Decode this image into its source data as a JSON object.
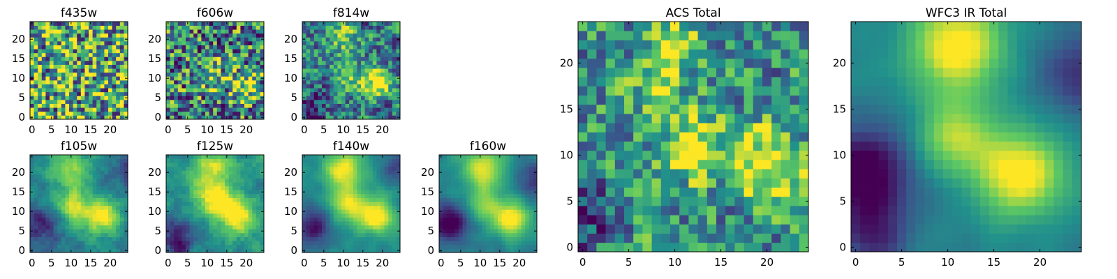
{
  "figure": {
    "colormap": "viridis",
    "colormap_stops": [
      "#440154",
      "#3b528b",
      "#21918c",
      "#5ec962",
      "#fde725"
    ]
  },
  "chart_data": [
    {
      "type": "heatmap",
      "title": "f435w",
      "grid_size": [
        25,
        25
      ],
      "xticks": [
        "0",
        "5",
        "10",
        "15",
        "20"
      ],
      "yticks": [
        "0",
        "5",
        "10",
        "15",
        "20"
      ],
      "xlim": [
        -0.5,
        24.5
      ],
      "ylim": [
        -0.5,
        24.5
      ],
      "grid": false,
      "texture": "noisy, nearly uniform high values",
      "hotspots": [],
      "coldspots": []
    },
    {
      "type": "heatmap",
      "title": "f606w",
      "grid_size": [
        25,
        25
      ],
      "xticks": [
        "0",
        "5",
        "10",
        "15",
        "20"
      ],
      "yticks": [
        "0",
        "5",
        "10",
        "15",
        "20"
      ],
      "xlim": [
        -0.5,
        24.5
      ],
      "ylim": [
        -0.5,
        24.5
      ],
      "grid": false,
      "texture": "noisy with faint bright peaks",
      "hotspots": [
        {
          "x": 20,
          "y": 8,
          "sigma": 2.5,
          "amp": 0.5
        },
        {
          "x": 11,
          "y": 11,
          "sigma": 2.5,
          "amp": 0.35
        }
      ],
      "coldspots": []
    },
    {
      "type": "heatmap",
      "title": "f814w",
      "grid_size": [
        25,
        25
      ],
      "xticks": [
        "0",
        "5",
        "10",
        "15",
        "20"
      ],
      "yticks": [
        "0",
        "5",
        "10",
        "15",
        "20"
      ],
      "xlim": [
        -0.5,
        24.5
      ],
      "ylim": [
        -0.5,
        24.5
      ],
      "grid": false,
      "texture": "noisy with bright peaks",
      "hotspots": [
        {
          "x": 19,
          "y": 9,
          "sigma": 2.6,
          "amp": 0.6
        },
        {
          "x": 11,
          "y": 11,
          "sigma": 2.6,
          "amp": 0.45
        },
        {
          "x": 10,
          "y": 20,
          "sigma": 3,
          "amp": 0.35
        }
      ],
      "coldspots": [
        {
          "x": 2,
          "y": 3,
          "sigma": 3,
          "amp": 0.25
        }
      ]
    },
    {
      "type": "heatmap",
      "title": "f105w",
      "grid_size": [
        25,
        25
      ],
      "xticks": [
        "0",
        "5",
        "10",
        "15",
        "20"
      ],
      "yticks": [
        "0",
        "5",
        "10",
        "15",
        "20"
      ],
      "xlim": [
        -0.5,
        24.5
      ],
      "ylim": [
        -0.5,
        24.5
      ],
      "grid": false,
      "texture": "moderately smooth",
      "hotspots": [
        {
          "x": 18,
          "y": 9,
          "sigma": 3,
          "amp": 0.55
        },
        {
          "x": 11,
          "y": 11,
          "sigma": 3,
          "amp": 0.5
        },
        {
          "x": 10,
          "y": 21,
          "sigma": 3.5,
          "amp": 0.4
        }
      ],
      "coldspots": [
        {
          "x": 2,
          "y": 6,
          "sigma": 3.5,
          "amp": 0.35
        },
        {
          "x": 24,
          "y": 20,
          "sigma": 3,
          "amp": 0.25
        }
      ]
    },
    {
      "type": "heatmap",
      "title": "f125w",
      "grid_size": [
        25,
        25
      ],
      "xticks": [
        "0",
        "5",
        "10",
        "15",
        "20"
      ],
      "yticks": [
        "0",
        "5",
        "10",
        "15",
        "20"
      ],
      "xlim": [
        -0.5,
        24.5
      ],
      "ylim": [
        -0.5,
        24.5
      ],
      "grid": false,
      "texture": "moderately smooth",
      "hotspots": [
        {
          "x": 18,
          "y": 9,
          "sigma": 3,
          "amp": 0.55
        },
        {
          "x": 12,
          "y": 13,
          "sigma": 3.5,
          "amp": 0.5
        },
        {
          "x": 11,
          "y": 21,
          "sigma": 3.5,
          "amp": 0.45
        }
      ],
      "coldspots": [
        {
          "x": 2,
          "y": 4,
          "sigma": 3.5,
          "amp": 0.35
        },
        {
          "x": 3,
          "y": 0,
          "sigma": 2,
          "amp": 0.3
        }
      ]
    },
    {
      "type": "heatmap",
      "title": "f140w",
      "grid_size": [
        25,
        25
      ],
      "xticks": [
        "0",
        "5",
        "10",
        "15",
        "20"
      ],
      "yticks": [
        "0",
        "5",
        "10",
        "15",
        "20"
      ],
      "xlim": [
        -0.5,
        24.5
      ],
      "ylim": [
        -0.5,
        24.5
      ],
      "grid": false,
      "texture": "smooth",
      "hotspots": [
        {
          "x": 18,
          "y": 9,
          "sigma": 3.2,
          "amp": 0.6
        },
        {
          "x": 10,
          "y": 21,
          "sigma": 3.5,
          "amp": 0.55
        },
        {
          "x": 11,
          "y": 12,
          "sigma": 3,
          "amp": 0.45
        }
      ],
      "coldspots": [
        {
          "x": 2,
          "y": 6,
          "sigma": 3.5,
          "amp": 0.45
        },
        {
          "x": 24,
          "y": 22,
          "sigma": 3,
          "amp": 0.3
        }
      ]
    },
    {
      "type": "heatmap",
      "title": "f160w",
      "grid_size": [
        25,
        25
      ],
      "xticks": [
        "0",
        "5",
        "10",
        "15",
        "20"
      ],
      "yticks": [
        "0",
        "5",
        "10",
        "15",
        "20"
      ],
      "xlim": [
        -0.5,
        24.5
      ],
      "ylim": [
        -0.5,
        24.5
      ],
      "grid": false,
      "texture": "smooth",
      "hotspots": [
        {
          "x": 18,
          "y": 8,
          "sigma": 3.2,
          "amp": 0.6
        },
        {
          "x": 11,
          "y": 21,
          "sigma": 3.5,
          "amp": 0.55
        },
        {
          "x": 11,
          "y": 12,
          "sigma": 3,
          "amp": 0.4
        }
      ],
      "coldspots": [
        {
          "x": 2,
          "y": 7,
          "sigma": 3.5,
          "amp": 0.5
        },
        {
          "x": 24,
          "y": 18,
          "sigma": 3,
          "amp": 0.3
        }
      ]
    },
    {
      "type": "heatmap",
      "title": "ACS Total",
      "grid_size": [
        25,
        25
      ],
      "xticks": [
        "0",
        "5",
        "10",
        "15",
        "20"
      ],
      "yticks": [
        "0",
        "5",
        "10",
        "15",
        "20"
      ],
      "xlim": [
        -0.5,
        24.5
      ],
      "ylim": [
        -0.5,
        24.5
      ],
      "grid": false,
      "texture": "noisy with bright peaks",
      "hotspots": [
        {
          "x": 20,
          "y": 9,
          "sigma": 2.8,
          "amp": 0.6
        },
        {
          "x": 12,
          "y": 11,
          "sigma": 2.6,
          "amp": 0.5
        },
        {
          "x": 10,
          "y": 22,
          "sigma": 2.2,
          "amp": 0.45
        },
        {
          "x": 8,
          "y": 17,
          "sigma": 1.8,
          "amp": 0.3
        }
      ],
      "coldspots": [
        {
          "x": 1,
          "y": 3,
          "sigma": 2.5,
          "amp": 0.25
        }
      ]
    },
    {
      "type": "heatmap",
      "title": "WFC3 IR Total",
      "grid_size": [
        25,
        25
      ],
      "xticks": [
        "0",
        "5",
        "10",
        "15",
        "20"
      ],
      "yticks": [
        "0",
        "5",
        "10",
        "15",
        "20"
      ],
      "xlim": [
        -0.5,
        24.5
      ],
      "ylim": [
        -0.5,
        24.5
      ],
      "grid": false,
      "texture": "smooth",
      "hotspots": [
        {
          "x": 18,
          "y": 8,
          "sigma": 3.2,
          "amp": 0.6
        },
        {
          "x": 11,
          "y": 22,
          "sigma": 3.6,
          "amp": 0.6
        },
        {
          "x": 11,
          "y": 12,
          "sigma": 2.8,
          "amp": 0.45
        }
      ],
      "coldspots": [
        {
          "x": 1,
          "y": 8,
          "sigma": 3.5,
          "amp": 0.55
        },
        {
          "x": 24,
          "y": 19,
          "sigma": 3,
          "amp": 0.3
        },
        {
          "x": 2,
          "y": 1,
          "sigma": 2.5,
          "amp": 0.3
        }
      ]
    }
  ]
}
